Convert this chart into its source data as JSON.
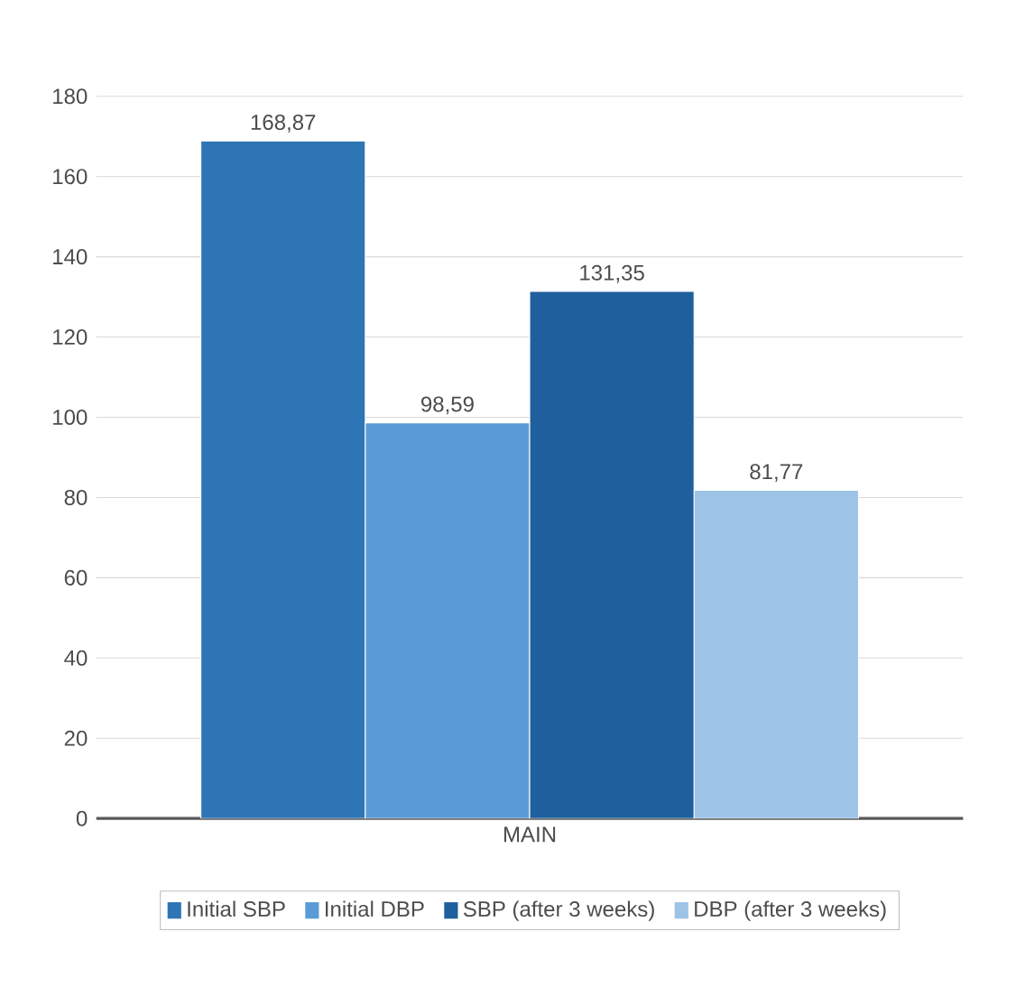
{
  "chart_data": {
    "type": "bar",
    "categories": [
      "MAIN"
    ],
    "series": [
      {
        "name": "Initial SBP",
        "color": "#2e75b6",
        "values": [
          168.87
        ],
        "value_labels": [
          "168,87"
        ]
      },
      {
        "name": "Initial DBP",
        "color": "#5b9bd5",
        "values": [
          98.59
        ],
        "value_labels": [
          "98,59"
        ]
      },
      {
        "name": "SBP (after 3 weeks)",
        "color": "#1f5f9e",
        "values": [
          131.35
        ],
        "value_labels": [
          "131,35"
        ]
      },
      {
        "name": "DBP (after 3 weeks)",
        "color": "#9dc3e6",
        "values": [
          81.77
        ],
        "value_labels": [
          "81,77"
        ]
      }
    ],
    "ylim": [
      0,
      180
    ],
    "yticks": [
      0,
      20,
      40,
      60,
      80,
      100,
      120,
      140,
      160,
      180
    ],
    "grid": "y",
    "legend": "bottom"
  }
}
